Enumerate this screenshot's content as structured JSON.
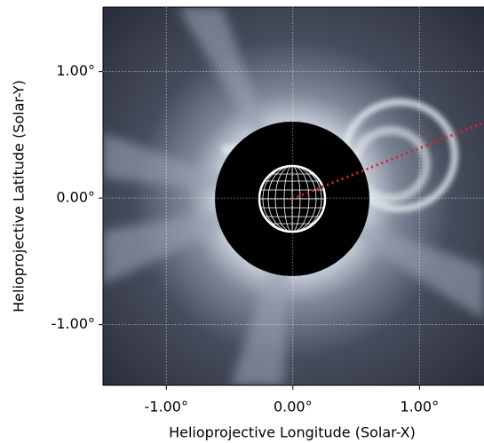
{
  "chart_data": {
    "type": "image",
    "xlabel": "Helioprojective Longitude (Solar-X)",
    "ylabel": "Helioprojective Latitude (Solar-Y)",
    "xlim": [
      -1.5,
      1.51
    ],
    "ylim": [
      -1.48,
      1.51
    ],
    "xticks": [
      {
        "value": -1,
        "label": "-1.00°"
      },
      {
        "value": 0,
        "label": "0.00°"
      },
      {
        "value": 1,
        "label": "1.00°"
      }
    ],
    "yticks": [
      {
        "value": -1,
        "label": "-1.00°"
      },
      {
        "value": 0,
        "label": "0.00°"
      },
      {
        "value": 1,
        "label": "1.00°"
      }
    ],
    "grid": true
  }
}
